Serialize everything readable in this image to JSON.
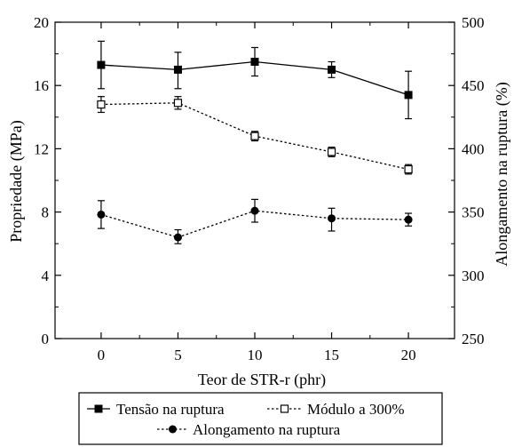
{
  "chart_data": {
    "type": "line",
    "x": [
      0,
      5,
      10,
      15,
      20
    ],
    "xticks": [
      0,
      5,
      10,
      15,
      20
    ],
    "xlim": [
      -3,
      23
    ],
    "xlabel": "Teor de STR-r (phr)",
    "ylabel_left": "Propriedade (MPa)",
    "ylim_left": [
      0,
      20
    ],
    "yticks_left": [
      0,
      4,
      8,
      12,
      16,
      20
    ],
    "ylabel_right": "Alongamento na ruptura (%)",
    "ylim_right": [
      250,
      500
    ],
    "yticks_right": [
      250,
      300,
      350,
      400,
      450,
      500
    ],
    "grid": false,
    "legend_position": "bottom",
    "series": [
      {
        "name": "Tensão na ruptura",
        "axis": "left",
        "marker": "filled-square",
        "line": "solid",
        "values": [
          17.3,
          17.0,
          17.5,
          17.0,
          15.4
        ],
        "err_low": [
          15.8,
          15.8,
          16.6,
          16.5,
          13.9
        ],
        "err_high": [
          18.8,
          18.1,
          18.4,
          17.5,
          16.9
        ]
      },
      {
        "name": "Módulo a 300%",
        "axis": "left",
        "marker": "open-square",
        "line": "dotted",
        "values": [
          14.8,
          14.9,
          12.8,
          11.8,
          10.7
        ],
        "err_low": [
          14.3,
          14.5,
          12.5,
          11.5,
          10.4
        ],
        "err_high": [
          15.3,
          15.3,
          13.1,
          12.1,
          11.0
        ]
      },
      {
        "name": "Alongamento na ruptura",
        "axis": "right",
        "marker": "filled-circle",
        "line": "dotted",
        "values": [
          348,
          330,
          351,
          345,
          344
        ],
        "err_low": [
          337,
          325,
          342,
          335,
          339
        ],
        "err_high": [
          359,
          336,
          360,
          353,
          349
        ]
      }
    ]
  }
}
